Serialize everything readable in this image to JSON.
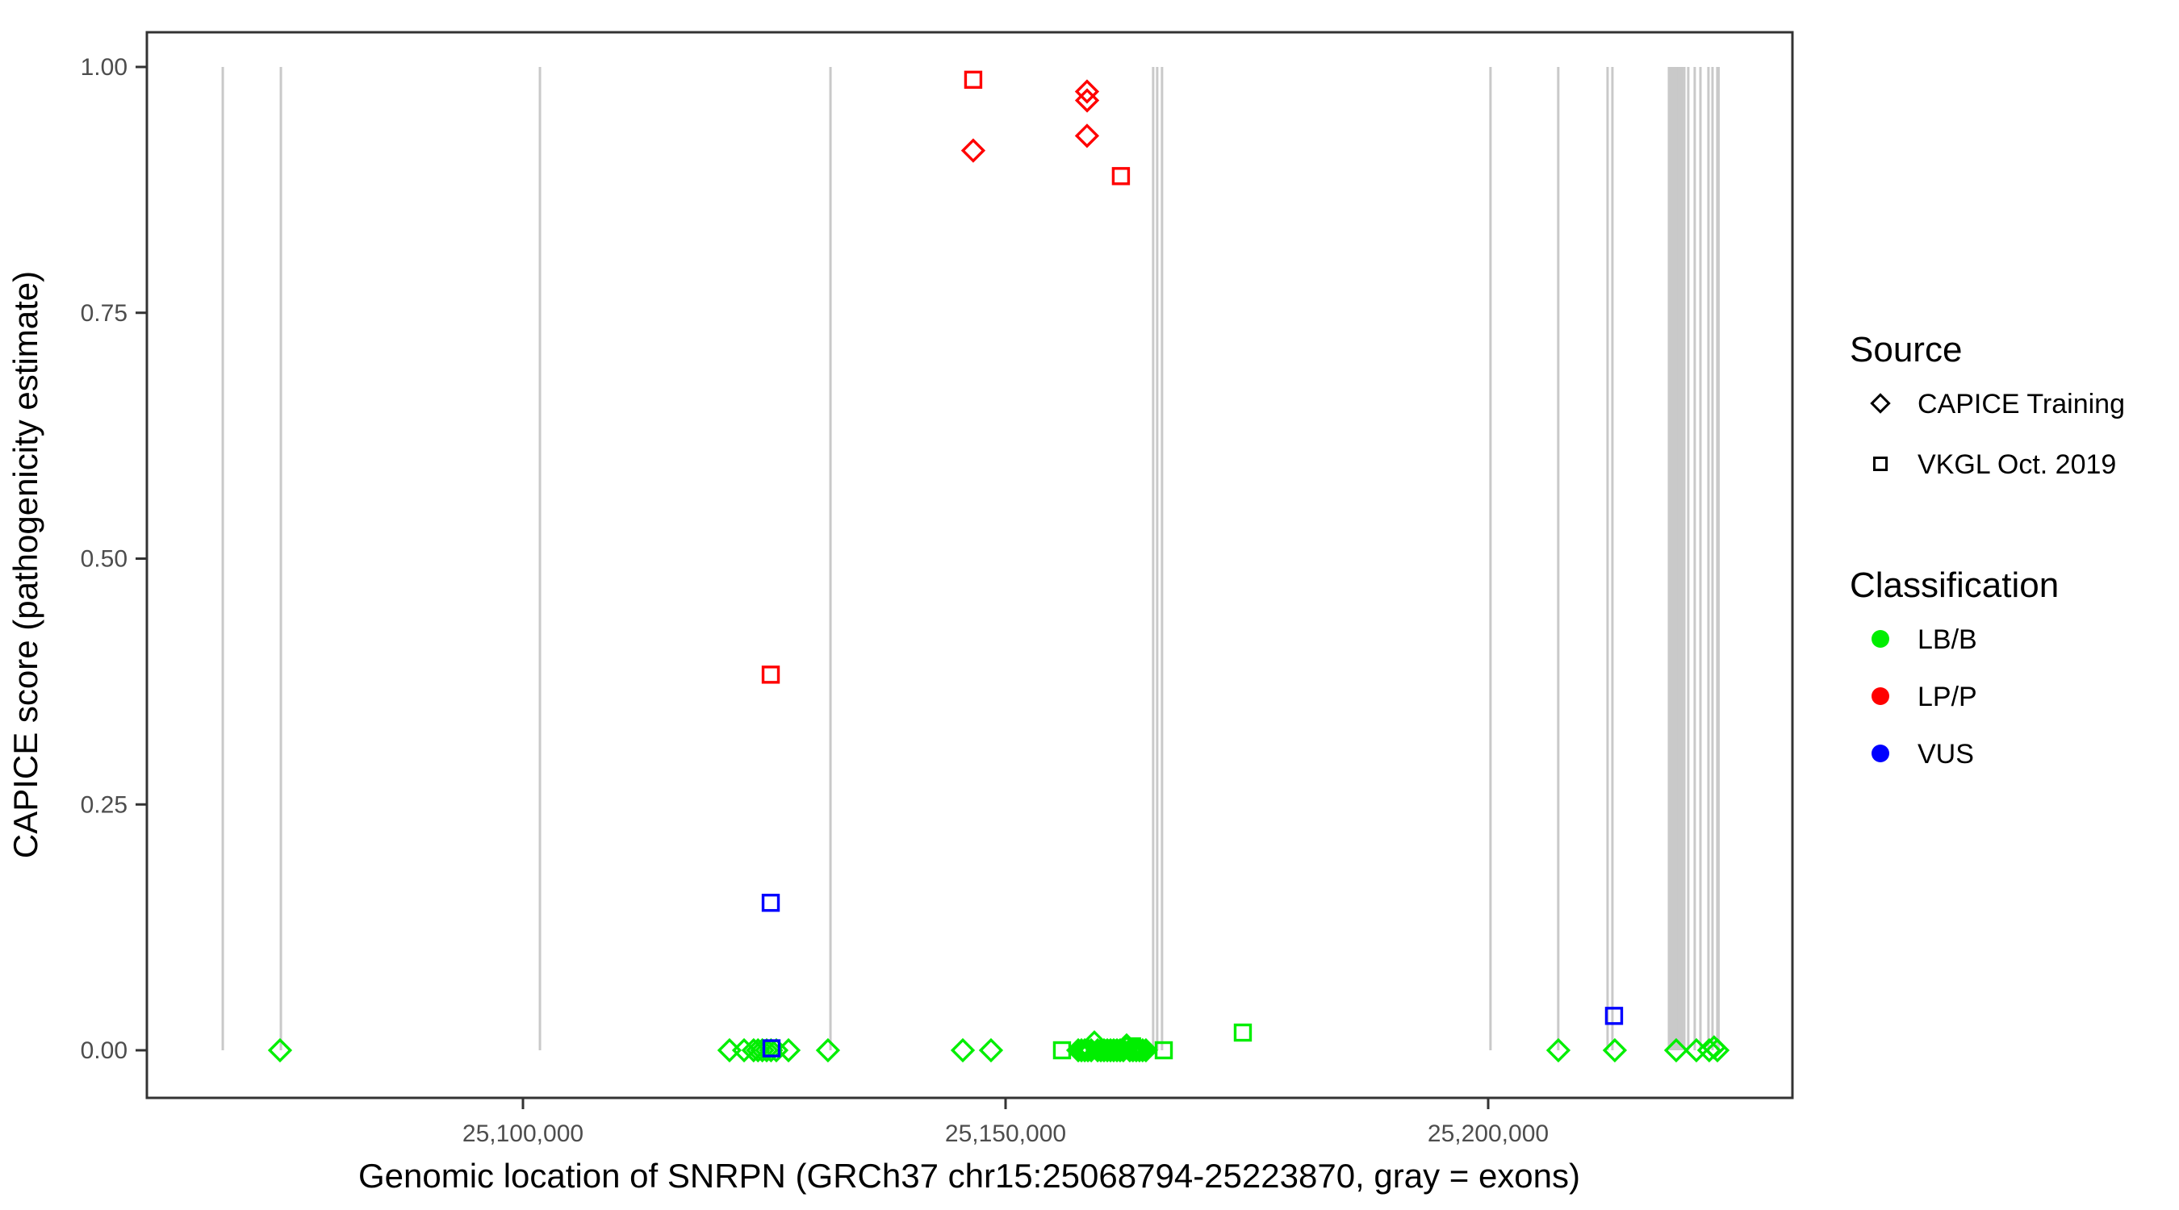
{
  "chart_data": {
    "type": "scatter",
    "title": "",
    "xlabel": "Genomic location of SNRPN (GRCh37 chr15:25068794-25223870, gray = exons)",
    "ylabel": "CAPICE score (pathogenicity estimate)",
    "x_domain": [
      25061040,
      25231520
    ],
    "y_domain": [
      0,
      1
    ],
    "grid": "off",
    "x_ticks": [
      {
        "value": 25100000,
        "label": "25,100,000"
      },
      {
        "value": 25150000,
        "label": "25,150,000"
      },
      {
        "value": 25200000,
        "label": "25,200,000"
      }
    ],
    "y_ticks": [
      {
        "value": 0.0,
        "label": "0.00"
      },
      {
        "value": 0.25,
        "label": "0.25"
      },
      {
        "value": 0.5,
        "label": "0.50"
      },
      {
        "value": 0.75,
        "label": "0.75"
      },
      {
        "value": 1.0,
        "label": "1.00"
      }
    ],
    "style": {
      "exon_color": "#c9c9c9",
      "panel_border_color": "#333333",
      "tick_color": "#333333",
      "marker_stroke_width": 3.4
    },
    "exons_bp": [
      25068900,
      25074920,
      25101760,
      25131860,
      25165290,
      25165710,
      25166210,
      25200240,
      25207260,
      25212370,
      25212870,
      25218730,
      25218900,
      25219070,
      25219240,
      25219410,
      25219580,
      25219750,
      25219920,
      25220090,
      25220320,
      25220730,
      25221400,
      25221990,
      25222820,
      25223240,
      25223740,
      25223870
    ],
    "legend": {
      "source": {
        "title": "Source",
        "items": [
          {
            "label": "CAPICE Training",
            "marker": "diamond"
          },
          {
            "label": "VKGL Oct. 2019",
            "marker": "square"
          }
        ]
      },
      "classification": {
        "title": "Classification",
        "items": [
          {
            "label": "LB/B",
            "color": "#00ee00"
          },
          {
            "label": "LP/P",
            "color": "#ff0000"
          },
          {
            "label": "VUS",
            "color": "#0000ff"
          }
        ]
      }
    },
    "series": [
      {
        "name": "LB/B - CAPICE Training",
        "classification": "LB/B",
        "source": "CAPICE Training",
        "marker": "diamond",
        "color": "#00ee00",
        "points": [
          {
            "x": 25074830,
            "y": 0.0
          },
          {
            "x": 25121400,
            "y": 0.0
          },
          {
            "x": 25122910,
            "y": 0.0
          },
          {
            "x": 25123900,
            "y": 0.0
          },
          {
            "x": 25124350,
            "y": 0.0
          },
          {
            "x": 25124800,
            "y": 0.0
          },
          {
            "x": 25125250,
            "y": 0.0
          },
          {
            "x": 25125700,
            "y": 0.0
          },
          {
            "x": 25126250,
            "y": 0.0
          },
          {
            "x": 25127510,
            "y": 0.0
          },
          {
            "x": 25131600,
            "y": 0.0
          },
          {
            "x": 25145570,
            "y": 0.0
          },
          {
            "x": 25148490,
            "y": 0.0
          },
          {
            "x": 25157530,
            "y": 0.0
          },
          {
            "x": 25157860,
            "y": 0.0
          },
          {
            "x": 25158200,
            "y": 0.0
          },
          {
            "x": 25158530,
            "y": 0.0
          },
          {
            "x": 25158870,
            "y": 0.0
          },
          {
            "x": 25159200,
            "y": 0.008
          },
          {
            "x": 25159540,
            "y": 0.0
          },
          {
            "x": 25159870,
            "y": 0.0
          },
          {
            "x": 25160200,
            "y": 0.0
          },
          {
            "x": 25160540,
            "y": 0.0
          },
          {
            "x": 25160870,
            "y": 0.0
          },
          {
            "x": 25161200,
            "y": 0.0
          },
          {
            "x": 25161540,
            "y": 0.0
          },
          {
            "x": 25161870,
            "y": 0.0
          },
          {
            "x": 25162200,
            "y": 0.0
          },
          {
            "x": 25162540,
            "y": 0.005
          },
          {
            "x": 25162870,
            "y": 0.0
          },
          {
            "x": 25163200,
            "y": 0.0
          },
          {
            "x": 25163540,
            "y": 0.0
          },
          {
            "x": 25163870,
            "y": 0.0
          },
          {
            "x": 25164200,
            "y": 0.0
          },
          {
            "x": 25164540,
            "y": 0.0
          },
          {
            "x": 25207270,
            "y": 0.0
          },
          {
            "x": 25213120,
            "y": 0.0
          },
          {
            "x": 25219480,
            "y": 0.0
          },
          {
            "x": 25221570,
            "y": 0.0
          },
          {
            "x": 25222900,
            "y": 0.0
          },
          {
            "x": 25223400,
            "y": 0.003
          },
          {
            "x": 25223750,
            "y": 0.0
          }
        ]
      },
      {
        "name": "LB/B - VKGL Oct. 2019",
        "classification": "LB/B",
        "source": "VKGL Oct. 2019",
        "marker": "square",
        "color": "#00ee00",
        "points": [
          {
            "x": 25155850,
            "y": 0.0
          },
          {
            "x": 25160800,
            "y": 0.002
          },
          {
            "x": 25163100,
            "y": 0.004
          },
          {
            "x": 25166390,
            "y": 0.0
          },
          {
            "x": 25174580,
            "y": 0.018
          }
        ]
      },
      {
        "name": "LP/P - CAPICE Training",
        "classification": "LP/P",
        "source": "CAPICE Training",
        "marker": "diamond",
        "color": "#ff0000",
        "points": [
          {
            "x": 25146650,
            "y": 0.915
          },
          {
            "x": 25158440,
            "y": 0.975
          },
          {
            "x": 25158450,
            "y": 0.966
          },
          {
            "x": 25158440,
            "y": 0.93
          }
        ]
      },
      {
        "name": "LP/P - VKGL Oct. 2019",
        "classification": "LP/P",
        "source": "VKGL Oct. 2019",
        "marker": "square",
        "color": "#ff0000",
        "points": [
          {
            "x": 25146650,
            "y": 0.987
          },
          {
            "x": 25161950,
            "y": 0.889
          },
          {
            "x": 25125670,
            "y": 0.382
          }
        ]
      },
      {
        "name": "VUS - VKGL Oct. 2019",
        "classification": "VUS",
        "source": "VKGL Oct. 2019",
        "marker": "square",
        "color": "#0000ff",
        "points": [
          {
            "x": 25125670,
            "y": 0.15
          },
          {
            "x": 25125750,
            "y": 0.002
          },
          {
            "x": 25213040,
            "y": 0.035
          }
        ]
      }
    ]
  }
}
